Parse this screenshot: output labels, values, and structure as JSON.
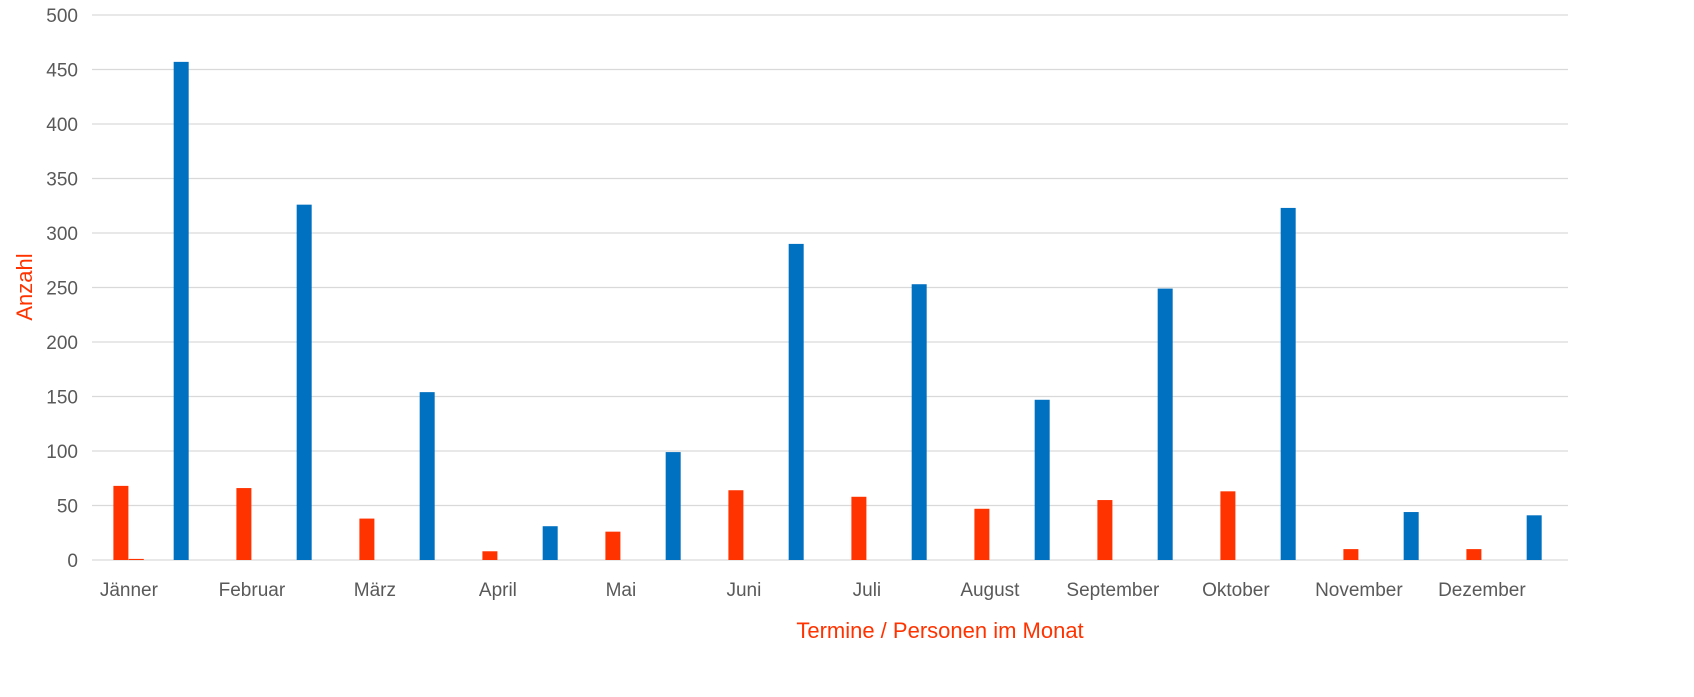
{
  "chart_data": {
    "type": "bar",
    "categories": [
      "Jänner",
      "Februar",
      "März",
      "April",
      "Mai",
      "Juni",
      "Juli",
      "August",
      "September",
      "Oktober",
      "November",
      "Dezember"
    ],
    "series": [
      {
        "color": "#ff3300",
        "values": [
          68,
          66,
          38,
          8,
          26,
          64,
          58,
          47,
          55,
          63,
          10,
          10
        ]
      },
      {
        "color": "#0070c0",
        "values": [
          457,
          326,
          154,
          31,
          99,
          290,
          253,
          147,
          249,
          323,
          44,
          41
        ]
      }
    ],
    "extra_bar": {
      "category": "Jänner",
      "value": 1,
      "color": "#ff3300"
    },
    "xlabel": "Termine / Personen im Monat",
    "ylabel": "Anzahl",
    "axis_title_color": "#ff3300",
    "ylim": [
      0,
      500
    ],
    "yticks": [
      0,
      50,
      100,
      150,
      200,
      250,
      300,
      350,
      400,
      450,
      500
    ],
    "grid": true,
    "legend": "none"
  }
}
